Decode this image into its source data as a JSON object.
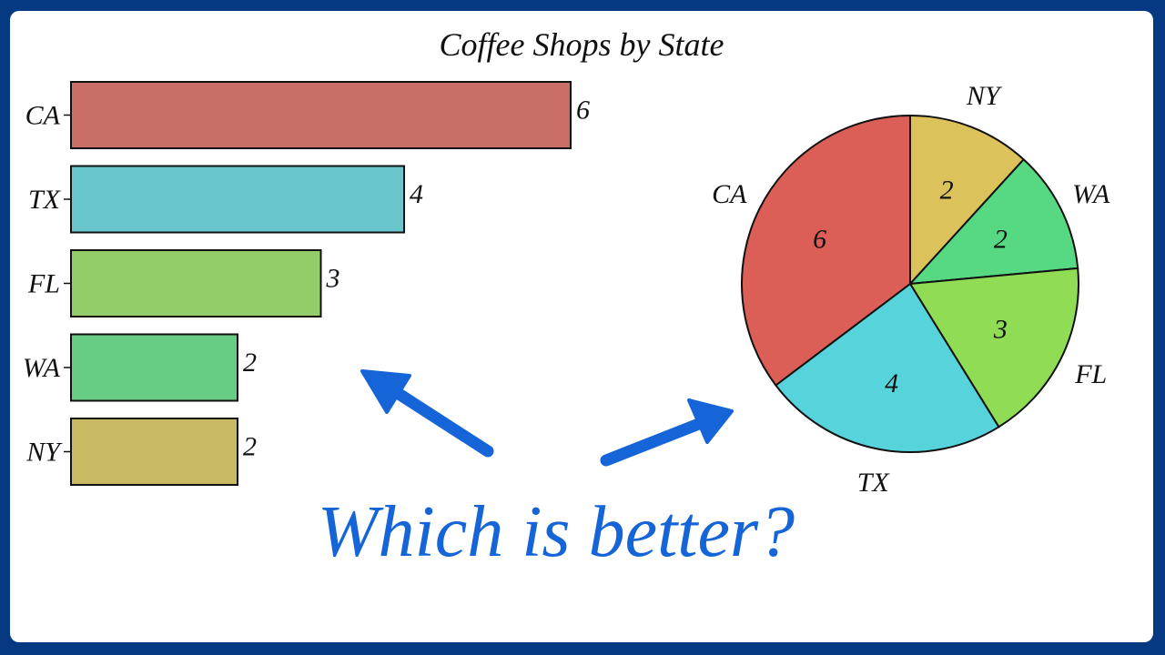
{
  "chart_data": [
    {
      "type": "bar",
      "orientation": "horizontal",
      "title": "Coffee Shops by State",
      "categories": [
        "CA",
        "TX",
        "FL",
        "WA",
        "NY"
      ],
      "values": [
        6,
        4,
        3,
        2,
        2
      ],
      "colors": [
        "#c96f68",
        "#6ac6cd",
        "#93cd69",
        "#67cd84",
        "#c8b963"
      ],
      "data_labels": true,
      "xlim": [
        0,
        6
      ],
      "grid": false
    },
    {
      "type": "pie",
      "categories": [
        "NY",
        "WA",
        "FL",
        "TX",
        "CA"
      ],
      "values": [
        2,
        2,
        3,
        4,
        6
      ],
      "colors": [
        "#dbc25b",
        "#56d982",
        "#90dd55",
        "#57d4db",
        "#db5e57"
      ],
      "data_labels": true,
      "start": "top",
      "direction": "clockwise"
    }
  ],
  "headline": "Which is better?",
  "accent_color": "#1565d8",
  "background_color": "#053a83"
}
